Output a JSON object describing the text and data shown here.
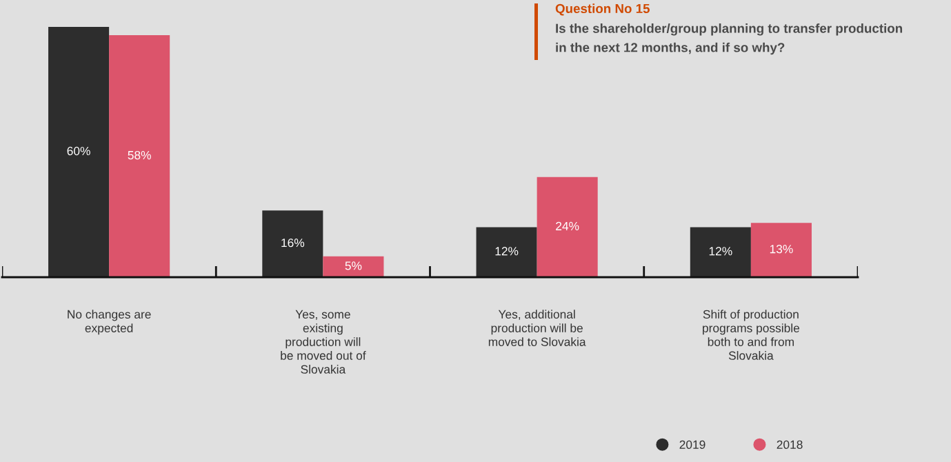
{
  "chart_data": {
    "type": "bar",
    "title": "Question No 15",
    "subtitle": "Is the shareholder/group planning to transfer production\nin the next 12 months, and if so why?",
    "categories": [
      "No changes are\nexpected",
      "Yes, some\nexisting\nproduction will\nbe moved out of\nSlovakia",
      "Yes, additional\nproduction will be\nmoved to Slovakia",
      "Shift of production\nprograms possible\nboth to and from\nSlovakia"
    ],
    "series": [
      {
        "name": "2019",
        "color": "#2d2d2d",
        "values": [
          60,
          16,
          12,
          12
        ],
        "value_labels": [
          "60%",
          "16%",
          "12%",
          "12%"
        ]
      },
      {
        "name": "2018",
        "color": "#dc546b",
        "values": [
          58,
          5,
          24,
          13
        ],
        "value_labels": [
          "58%",
          "5%",
          "24%",
          "13%"
        ]
      }
    ],
    "grid": false,
    "legend": "bottom right"
  }
}
